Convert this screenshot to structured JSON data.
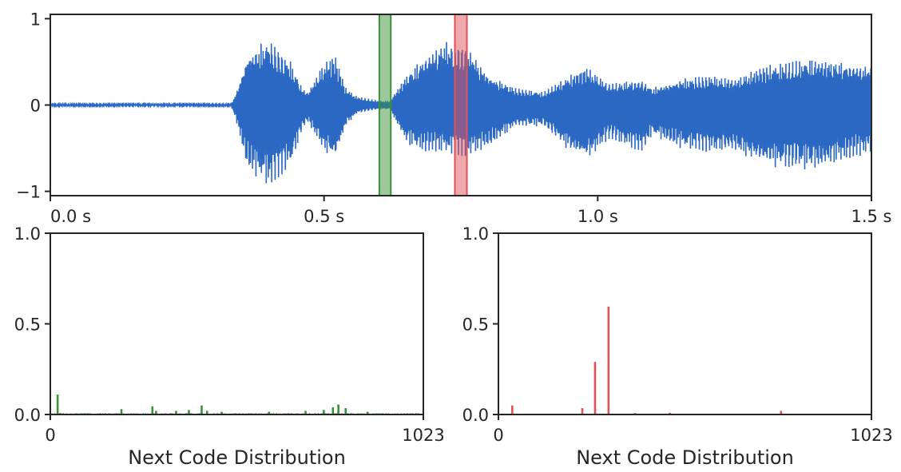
{
  "colors": {
    "waveform": "#2b68c4",
    "green": "#3a913a",
    "red": "#e05258",
    "axis": "#262626"
  },
  "chart_data": [
    {
      "type": "line",
      "title": "",
      "xlabel": "",
      "ylabel": "",
      "xlim": [
        0,
        1.5
      ],
      "ylim": [
        -1.05,
        1.05
      ],
      "x_ticks": [
        0,
        0.5,
        1.0,
        1.5
      ],
      "x_tick_labels": [
        "0.0 s",
        "0.5 s",
        "1.0 s",
        "1.5 s"
      ],
      "y_ticks": [
        1,
        0,
        -1
      ],
      "y_tick_labels": [
        "1",
        "0",
        "−1"
      ],
      "grid": false,
      "series": [
        {
          "color": "#2b68c4",
          "envelope": {
            "t": [
              0.0,
              0.33,
              0.34,
              0.36,
              0.4,
              0.44,
              0.46,
              0.47,
              0.5,
              0.52,
              0.54,
              0.56,
              0.6,
              0.62,
              0.65,
              0.68,
              0.72,
              0.76,
              0.8,
              0.85,
              0.9,
              0.95,
              0.98,
              1.02,
              1.08,
              1.1,
              1.15,
              1.2,
              1.25,
              1.3,
              1.35,
              1.4,
              1.45,
              1.5
            ],
            "upper": [
              0.01,
              0.01,
              0.15,
              0.6,
              0.78,
              0.5,
              0.2,
              0.15,
              0.5,
              0.6,
              0.2,
              0.1,
              0.05,
              0.05,
              0.35,
              0.55,
              0.75,
              0.7,
              0.35,
              0.2,
              0.15,
              0.35,
              0.45,
              0.25,
              0.3,
              0.2,
              0.3,
              0.35,
              0.3,
              0.45,
              0.5,
              0.55,
              0.5,
              0.45
            ],
            "lower": [
              -0.01,
              -0.01,
              -0.2,
              -0.75,
              -0.95,
              -0.7,
              -0.3,
              -0.2,
              -0.55,
              -0.65,
              -0.25,
              -0.1,
              -0.05,
              -0.05,
              -0.45,
              -0.55,
              -0.55,
              -0.6,
              -0.5,
              -0.25,
              -0.25,
              -0.55,
              -0.65,
              -0.4,
              -0.55,
              -0.35,
              -0.5,
              -0.55,
              -0.55,
              -0.7,
              -0.75,
              -0.75,
              -0.65,
              -0.55
            ]
          }
        }
      ],
      "highlights": [
        {
          "x_start": 0.601,
          "x_end": 0.622,
          "color": "green"
        },
        {
          "x_start": 0.739,
          "x_end": 0.761,
          "color": "red"
        }
      ]
    },
    {
      "type": "bar",
      "xlabel": "Next Code Distribution",
      "xlim": [
        0,
        1023
      ],
      "ylim": [
        0,
        1.0
      ],
      "x_ticks": [
        0,
        1023
      ],
      "x_tick_labels": [
        "0",
        "1023"
      ],
      "y_ticks": [
        1.0,
        0.5,
        0.0
      ],
      "y_tick_labels": [
        "1.0",
        "0.5",
        "0.0"
      ],
      "grid": false,
      "color": "green",
      "spikes": [
        {
          "x": 20,
          "y": 0.11
        },
        {
          "x": 195,
          "y": 0.03
        },
        {
          "x": 280,
          "y": 0.045
        },
        {
          "x": 290,
          "y": 0.02
        },
        {
          "x": 345,
          "y": 0.02
        },
        {
          "x": 380,
          "y": 0.025
        },
        {
          "x": 415,
          "y": 0.05
        },
        {
          "x": 430,
          "y": 0.02
        },
        {
          "x": 470,
          "y": 0.015
        },
        {
          "x": 600,
          "y": 0.015
        },
        {
          "x": 700,
          "y": 0.02
        },
        {
          "x": 750,
          "y": 0.025
        },
        {
          "x": 775,
          "y": 0.04
        },
        {
          "x": 790,
          "y": 0.055
        },
        {
          "x": 810,
          "y": 0.035
        },
        {
          "x": 870,
          "y": 0.015
        }
      ],
      "background_noise": 0.008
    },
    {
      "type": "bar",
      "xlabel": "Next Code Distribution",
      "xlim": [
        0,
        1023
      ],
      "ylim": [
        0,
        1.0
      ],
      "x_ticks": [
        0,
        1023
      ],
      "x_tick_labels": [
        "0",
        "1023"
      ],
      "y_ticks": [
        1.0,
        0.5,
        0.0
      ],
      "y_tick_labels": [
        "1.0",
        "0.5",
        "0.0"
      ],
      "grid": false,
      "color": "red",
      "spikes": [
        {
          "x": 38,
          "y": 0.05
        },
        {
          "x": 230,
          "y": 0.035
        },
        {
          "x": 265,
          "y": 0.29
        },
        {
          "x": 302,
          "y": 0.595
        },
        {
          "x": 375,
          "y": 0.008
        },
        {
          "x": 470,
          "y": 0.01
        },
        {
          "x": 775,
          "y": 0.02
        }
      ],
      "background_noise": 0.002
    }
  ]
}
